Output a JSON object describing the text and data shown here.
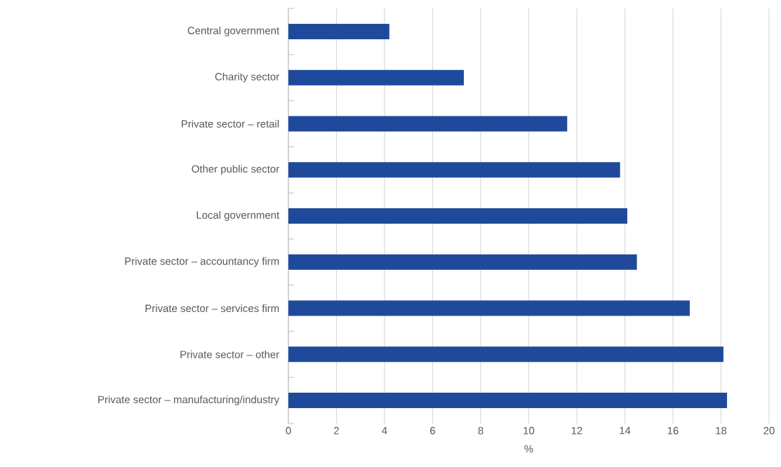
{
  "chart_data": {
    "type": "bar",
    "orientation": "horizontal",
    "xlabel": "%",
    "categories": [
      "Central government",
      "Charity sector",
      "Private sector – retail",
      "Other public sector",
      "Local government",
      "Private sector – accountancy firm",
      "Private sector – services firm",
      "Private sector – other",
      "Private sector – manufacturing/industry"
    ],
    "values": [
      4.2,
      7.3,
      11.6,
      13.8,
      14.1,
      14.5,
      16.7,
      18.1,
      18.25
    ],
    "color": "#1f4a9c",
    "xlim": [
      0,
      20
    ],
    "xticks": [
      0,
      2,
      4,
      6,
      8,
      10,
      12,
      14,
      16,
      18,
      20
    ],
    "grid": "x"
  }
}
